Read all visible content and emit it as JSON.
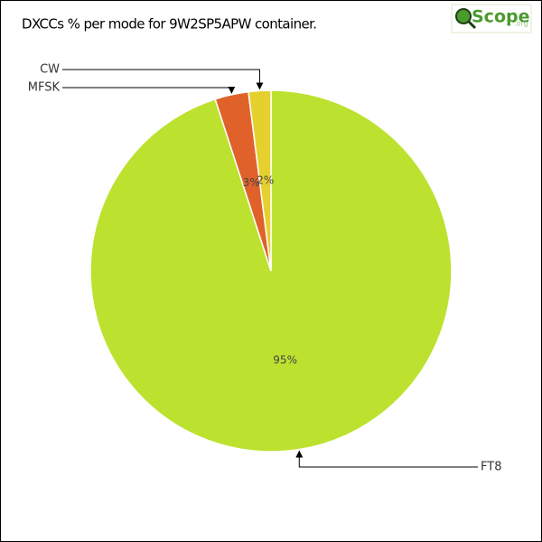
{
  "chart_data": {
    "type": "pie",
    "title": "DXCCs % per mode for 9W2SP5APW container.",
    "categories": [
      "FT8",
      "MFSK",
      "CW"
    ],
    "values": [
      95,
      3,
      2
    ],
    "value_labels": [
      "95%",
      "3%",
      "2%"
    ],
    "colors": [
      "#bce22f",
      "#e0622a",
      "#e6d02e"
    ]
  },
  "logo": {
    "text": "Scope",
    "suffix": ".org"
  }
}
